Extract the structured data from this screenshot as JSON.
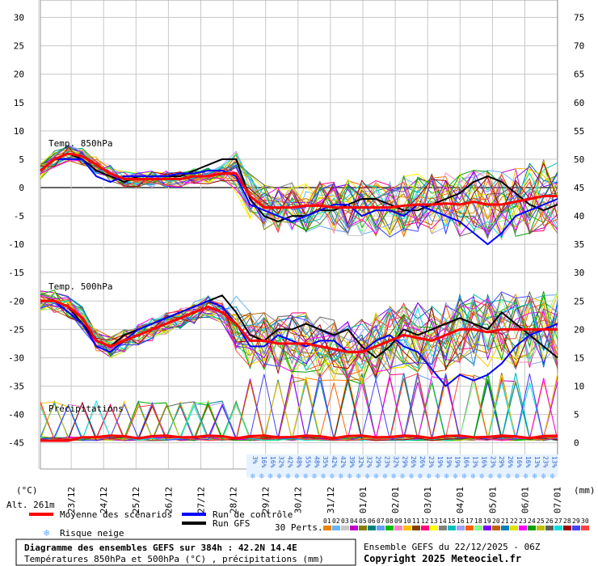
{
  "chart_data": {
    "type": "line",
    "title": "Diagramme des ensembles GEFS sur 384h : 42.2N 14.4E",
    "subtitle": "Températures 850hPa et 500hPa (°C) , précipitations (mm)",
    "run_info": "Ensemble GEFS du 22/12/2025 - 06Z",
    "copyright": "Copyright 2025 Meteociel.fr",
    "altitude": "Alt. 261m",
    "left_unit": "(°C)",
    "right_unit": "(mm)",
    "left_ticks": [
      30,
      25,
      20,
      15,
      10,
      5,
      0,
      -5,
      -10,
      -15,
      -20,
      -25,
      -30,
      -35,
      -40,
      -45
    ],
    "right_ticks": [
      75,
      70,
      65,
      60,
      55,
      50,
      45,
      40,
      35,
      30,
      25,
      20,
      15,
      10,
      5,
      0
    ],
    "ylim_temp": [
      -45,
      30
    ],
    "ylim_precip": [
      0,
      75
    ],
    "x_labels": [
      "23/12",
      "24/12",
      "25/12",
      "26/12",
      "27/12",
      "28/12",
      "29/12",
      "30/12",
      "31/12",
      "01/01",
      "02/01",
      "03/01",
      "04/01",
      "05/01",
      "06/01",
      "07/01"
    ],
    "grid": true,
    "section_labels": [
      "Temp. 850hPa",
      "Temp. 500hPa",
      "Précipitations"
    ],
    "snow_risk": [
      "3%",
      "16%",
      "16%",
      "32%",
      "42%",
      "48%",
      "55%",
      "48%",
      "35%",
      "42%",
      "42%",
      "39%",
      "32%",
      "32%",
      "29%",
      "23%",
      "32%",
      "29%",
      "26%",
      "26%",
      "23%",
      "19%",
      "19%",
      "19%",
      "16%",
      "13%",
      "16%",
      "23%",
      "29%",
      "26%",
      "16%",
      "16%",
      "13%",
      "23%",
      "13%"
    ],
    "mean_850": [
      3,
      5,
      6,
      5.5,
      4,
      2.5,
      1.5,
      1.5,
      1.5,
      1.5,
      1.5,
      2,
      2,
      2.5,
      2.5,
      -1.5,
      -3.5,
      -3.5,
      -3.5,
      -3.2,
      -3.2,
      -3.5,
      -3.5,
      -3.5,
      -3.5,
      -3.5,
      -3.2,
      -3,
      -3,
      -2.8,
      -3,
      -2.5,
      -3,
      -3,
      -2.5,
      -2,
      -1.5,
      -1.5
    ],
    "mean_500": [
      -20,
      -20,
      -21,
      -23,
      -27,
      -28,
      -27,
      -26,
      -25,
      -24,
      -23,
      -22,
      -21,
      -22,
      -24,
      -27,
      -27,
      -27.5,
      -27.5,
      -27.5,
      -28,
      -28.5,
      -29,
      -29,
      -28,
      -27,
      -26,
      -26.5,
      -27,
      -26,
      -25,
      -25,
      -25.5,
      -25,
      -25,
      -25,
      -25,
      -25
    ],
    "control_850": [
      3,
      5,
      5,
      5,
      2,
      1,
      2,
      2,
      2,
      2,
      2.5,
      2.5,
      3,
      3,
      2,
      -3,
      -4,
      -5,
      -6,
      -5,
      -4,
      -3,
      -3,
      -5,
      -4,
      -4,
      -5,
      -3,
      -4,
      -5,
      -6,
      -8,
      -10,
      -8,
      -5,
      -4,
      -3,
      -2
    ],
    "control_500": [
      -20,
      -20,
      -22,
      -24,
      -28,
      -29,
      -27,
      -25,
      -24,
      -23,
      -22,
      -21,
      -20,
      -21,
      -24,
      -28,
      -28,
      -26,
      -27,
      -28,
      -27,
      -27,
      -29,
      -29,
      -27,
      -26,
      -28,
      -29,
      -32,
      -35,
      -33,
      -34,
      -33,
      -31,
      -28,
      -26,
      -25,
      -24
    ],
    "gfs_850": [
      3,
      5,
      6,
      5,
      3,
      2,
      1,
      2,
      2,
      2,
      2,
      3,
      4,
      5,
      5,
      -2,
      -5,
      -6,
      -5,
      -5,
      -4,
      -4,
      -3,
      -2,
      -2,
      -3,
      -4,
      -4,
      -3,
      -2,
      -1,
      1,
      2,
      1,
      -1,
      -3,
      -4,
      -3
    ],
    "gfs_500": [
      -20,
      -20,
      -21,
      -24,
      -27,
      -28,
      -26,
      -25,
      -24,
      -23,
      -22,
      -21,
      -20,
      -19,
      -22,
      -26,
      -27,
      -25,
      -25,
      -24,
      -25,
      -26,
      -25,
      -28,
      -30,
      -28,
      -25,
      -26,
      -25,
      -24,
      -23,
      -24,
      -25,
      -22,
      -24,
      -26,
      -28,
      -30
    ],
    "legend": [
      {
        "label": "Moyenne des scénarios",
        "color": "#ff0000"
      },
      {
        "label": "Run de contrôle",
        "color": "#0000ff"
      },
      {
        "label": "Run GFS",
        "color": "#000000"
      },
      {
        "label": "Risque neige",
        "color": "#66aaff"
      }
    ],
    "perturbations_label": "30 Perts.",
    "perturbations": [
      {
        "name": "01",
        "color": "#f08000"
      },
      {
        "name": "02",
        "color": "#64b4ff"
      },
      {
        "name": "03",
        "color": "#c8c8c8"
      },
      {
        "name": "04",
        "color": "#c000c0"
      },
      {
        "name": "05",
        "color": "#808000"
      },
      {
        "name": "06",
        "color": "#008080"
      },
      {
        "name": "07",
        "color": "#60a0ff"
      },
      {
        "name": "08",
        "color": "#00c000"
      },
      {
        "name": "09",
        "color": "#ff80c0"
      },
      {
        "name": "10",
        "color": "#ffc000"
      },
      {
        "name": "11",
        "color": "#804000"
      },
      {
        "name": "12",
        "color": "#ff0080"
      },
      {
        "name": "13",
        "color": "#ffff00"
      },
      {
        "name": "14",
        "color": "#808080"
      },
      {
        "name": "15",
        "color": "#00c0c0"
      },
      {
        "name": "16",
        "color": "#a0a0ff"
      },
      {
        "name": "17",
        "color": "#ff6000"
      },
      {
        "name": "18",
        "color": "#80ff80"
      },
      {
        "name": "19",
        "color": "#8000ff"
      },
      {
        "name": "20",
        "color": "#c06000"
      },
      {
        "name": "21",
        "color": "#0080c0"
      },
      {
        "name": "22",
        "color": "#e0e000"
      },
      {
        "name": "23",
        "color": "#ff00ff"
      },
      {
        "name": "24",
        "color": "#00a000"
      },
      {
        "name": "25",
        "color": "#c0c000"
      },
      {
        "name": "26",
        "color": "#606060"
      },
      {
        "name": "27",
        "color": "#00e0e0"
      },
      {
        "name": "28",
        "color": "#a00000"
      },
      {
        "name": "29",
        "color": "#4040ff"
      },
      {
        "name": "30",
        "color": "#ff4040"
      }
    ]
  }
}
